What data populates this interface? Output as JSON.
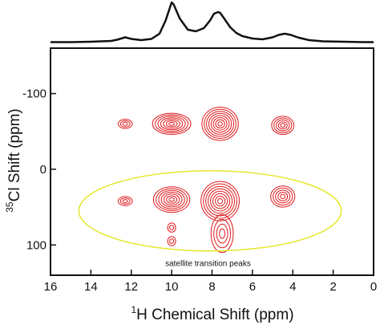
{
  "chart_data": {
    "type": "contour",
    "xlabel": {
      "sup": "1",
      "text": "H Chemical Shift (ppm)"
    },
    "ylabel": {
      "sup": "35",
      "text": "Cl Shift (ppm)"
    },
    "xlim": [
      16,
      0
    ],
    "ylim": [
      -160,
      140
    ],
    "xticks": [
      {
        "value": 16,
        "label": "16"
      },
      {
        "value": 14,
        "label": "14"
      },
      {
        "value": 12,
        "label": "12"
      },
      {
        "value": 10,
        "label": "10"
      },
      {
        "value": 8,
        "label": "8"
      },
      {
        "value": 6,
        "label": "6"
      },
      {
        "value": 4,
        "label": "4"
      },
      {
        "value": 2,
        "label": "2"
      },
      {
        "value": 0,
        "label": "0"
      }
    ],
    "yticks": [
      {
        "value": -100,
        "label": "-100"
      },
      {
        "value": 0,
        "label": "0"
      },
      {
        "value": 100,
        "label": "100"
      }
    ],
    "contour_color": "#e0191c",
    "spectrum_1d": {
      "x": [
        16,
        15,
        14,
        13,
        12.7,
        12.3,
        12,
        11.5,
        11,
        10.6,
        10.3,
        10.1,
        10.0,
        9.9,
        9.6,
        9.2,
        8.8,
        8.4,
        8.1,
        7.9,
        7.7,
        7.6,
        7.4,
        7.1,
        6.8,
        6.5,
        6.0,
        5.5,
        5.0,
        4.7,
        4.4,
        4.1,
        3.7,
        3.2,
        2.5,
        1.5,
        0.5,
        0
      ],
      "y": [
        0.01,
        0.01,
        0.02,
        0.04,
        0.07,
        0.13,
        0.09,
        0.06,
        0.09,
        0.22,
        0.55,
        0.85,
        1.0,
        0.95,
        0.6,
        0.32,
        0.28,
        0.36,
        0.55,
        0.72,
        0.76,
        0.74,
        0.6,
        0.38,
        0.24,
        0.16,
        0.1,
        0.08,
        0.13,
        0.19,
        0.22,
        0.19,
        0.12,
        0.06,
        0.03,
        0.02,
        0.01,
        0.01
      ]
    },
    "peaks": [
      {
        "x": 12.3,
        "y": -60,
        "rx": 0.35,
        "ry": 6,
        "levels": 3
      },
      {
        "x": 10.0,
        "y": -60,
        "rx": 0.95,
        "ry": 14,
        "levels": 7
      },
      {
        "x": 7.6,
        "y": -60,
        "rx": 0.9,
        "ry": 22,
        "levels": 8
      },
      {
        "x": 4.5,
        "y": -58,
        "rx": 0.55,
        "ry": 12,
        "levels": 5
      },
      {
        "x": 12.3,
        "y": 42,
        "rx": 0.35,
        "ry": 6,
        "levels": 3
      },
      {
        "x": 10.0,
        "y": 40,
        "rx": 0.9,
        "ry": 17,
        "levels": 7
      },
      {
        "x": 7.6,
        "y": 42,
        "rx": 0.95,
        "ry": 26,
        "levels": 8
      },
      {
        "x": 4.5,
        "y": 36,
        "rx": 0.6,
        "ry": 14,
        "levels": 5
      },
      {
        "x": 10.0,
        "y": 77,
        "rx": 0.2,
        "ry": 6,
        "levels": 2
      },
      {
        "x": 10.0,
        "y": 95,
        "rx": 0.2,
        "ry": 6,
        "levels": 2
      },
      {
        "x": 7.5,
        "y": 85,
        "rx": 0.55,
        "ry": 25,
        "levels": 4
      }
    ],
    "annotation": {
      "text": "satellite transition peaks",
      "x": 8.2,
      "y": 128,
      "color": "#e6e62a",
      "ellipse": {
        "cx": 8.1,
        "cy": 55,
        "rx": 6.5,
        "ry": 53
      }
    }
  }
}
